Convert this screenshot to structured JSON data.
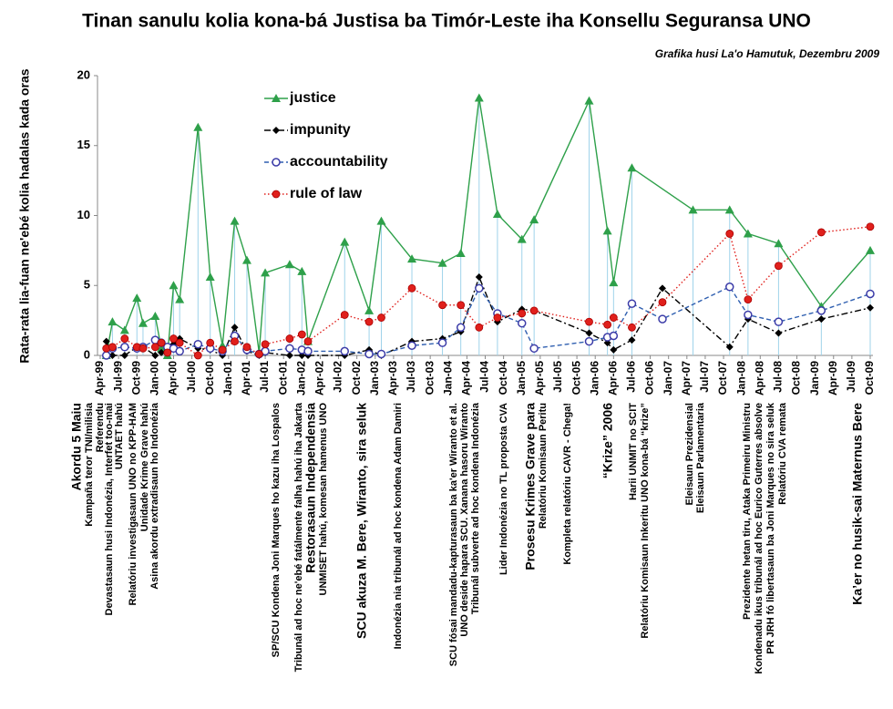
{
  "chart_data": {
    "type": "line",
    "title": "Tinan sanulu kolia kona-bá Justisa ba Timór-Leste iha Konsellu Seguransa UNO",
    "subtitle": "Grafika husi La'o Hamutuk, Dezembru 2009",
    "y_label": "Rata-rata lia-fuan ne'ebé kolia hadalas kada oras",
    "ylim": [
      0,
      20
    ],
    "yticks": [
      0,
      5,
      10,
      15,
      20
    ],
    "xlim": [
      "1999-04",
      "2009-10"
    ],
    "xticks": [
      {
        "value": "1999-04",
        "label": "Apr-99"
      },
      {
        "value": "1999-07",
        "label": "Jul-99"
      },
      {
        "value": "1999-10",
        "label": "Oct-99"
      },
      {
        "value": "2000-01",
        "label": "Jan-00"
      },
      {
        "value": "2000-04",
        "label": "Apr-00"
      },
      {
        "value": "2000-07",
        "label": "Jul-00"
      },
      {
        "value": "2000-10",
        "label": "Oct-00"
      },
      {
        "value": "2001-01",
        "label": "Jan-01"
      },
      {
        "value": "2001-04",
        "label": "Apr-01"
      },
      {
        "value": "2001-07",
        "label": "Jul-01"
      },
      {
        "value": "2001-10",
        "label": "Oct-01"
      },
      {
        "value": "2002-01",
        "label": "Jan-02"
      },
      {
        "value": "2002-04",
        "label": "Apr-02"
      },
      {
        "value": "2002-07",
        "label": "Jul-02"
      },
      {
        "value": "2002-10",
        "label": "Oct-02"
      },
      {
        "value": "2003-01",
        "label": "Jan-03"
      },
      {
        "value": "2003-04",
        "label": "Apr-03"
      },
      {
        "value": "2003-07",
        "label": "Jul-03"
      },
      {
        "value": "2003-10",
        "label": "Oct-03"
      },
      {
        "value": "2004-01",
        "label": "Jan-04"
      },
      {
        "value": "2004-04",
        "label": "Apr-04"
      },
      {
        "value": "2004-07",
        "label": "Jul-04"
      },
      {
        "value": "2004-10",
        "label": "Oct-04"
      },
      {
        "value": "2005-01",
        "label": "Jan-05"
      },
      {
        "value": "2005-04",
        "label": "Apr-05"
      },
      {
        "value": "2005-07",
        "label": "Jul-05"
      },
      {
        "value": "2005-10",
        "label": "Oct-05"
      },
      {
        "value": "2006-01",
        "label": "Jan-06"
      },
      {
        "value": "2006-04",
        "label": "Apr-06"
      },
      {
        "value": "2006-07",
        "label": "Jul-06"
      },
      {
        "value": "2006-10",
        "label": "Oct-06"
      },
      {
        "value": "2007-01",
        "label": "Jan-07"
      },
      {
        "value": "2007-04",
        "label": "Apr-07"
      },
      {
        "value": "2007-07",
        "label": "Jul-07"
      },
      {
        "value": "2007-10",
        "label": "Oct-07"
      },
      {
        "value": "2008-01",
        "label": "Jan-08"
      },
      {
        "value": "2008-04",
        "label": "Apr-08"
      },
      {
        "value": "2008-07",
        "label": "Jul-08"
      },
      {
        "value": "2008-10",
        "label": "Oct-08"
      },
      {
        "value": "2009-01",
        "label": "Jan-09"
      },
      {
        "value": "2009-04",
        "label": "Apr-09"
      },
      {
        "value": "2009-07",
        "label": "Jul-09"
      },
      {
        "value": "2009-10",
        "label": "Oct-09"
      }
    ],
    "series": [
      {
        "name": "justice",
        "color": "#2ea04a",
        "marker": "triangle",
        "dash": "solid",
        "drop_lines": true,
        "x": [
          "1999-05",
          "1999-06",
          "1999-08",
          "1999-10",
          "1999-11",
          "2000-01",
          "2000-02",
          "2000-03",
          "2000-04",
          "2000-05",
          "2000-08",
          "2000-10",
          "2000-12",
          "2001-02",
          "2001-04",
          "2001-06",
          "2001-07",
          "2001-11",
          "2002-01",
          "2002-02",
          "2002-08",
          "2002-12",
          "2003-02",
          "2003-07",
          "2003-12",
          "2004-03",
          "2004-06",
          "2004-09",
          "2005-01",
          "2005-03",
          "2005-12",
          "2006-03",
          "2006-04",
          "2006-07",
          "2007-05",
          "2007-11",
          "2008-02",
          "2008-07",
          "2009-02",
          "2009-10"
        ],
        "values": [
          0,
          2.4,
          1.8,
          4.1,
          2.3,
          2.8,
          0.5,
          0,
          5.0,
          4.0,
          16.3,
          5.6,
          0.7,
          9.6,
          6.8,
          0.2,
          5.9,
          6.5,
          6.0,
          1.0,
          8.1,
          3.2,
          9.6,
          6.9,
          6.6,
          7.3,
          18.4,
          10.1,
          8.3,
          9.7,
          18.2,
          8.9,
          5.2,
          13.4,
          10.4,
          10.4,
          8.7,
          8.0,
          3.5,
          7.5
        ]
      },
      {
        "name": "impunity",
        "color": "#000000",
        "marker": "diamond",
        "dash": "dashdot",
        "x": [
          "1999-05",
          "1999-06",
          "1999-08",
          "1999-10",
          "1999-11",
          "2000-01",
          "2000-02",
          "2000-03",
          "2000-04",
          "2000-05",
          "2000-08",
          "2000-10",
          "2000-12",
          "2001-02",
          "2001-04",
          "2001-06",
          "2001-07",
          "2001-11",
          "2002-01",
          "2002-02",
          "2002-08",
          "2002-12",
          "2003-02",
          "2003-07",
          "2003-12",
          "2004-03",
          "2004-06",
          "2004-09",
          "2005-01",
          "2005-03",
          "2005-12",
          "2006-03",
          "2006-04",
          "2006-07",
          "2006-12",
          "2007-11",
          "2008-02",
          "2008-07",
          "2009-02",
          "2009-10"
        ],
        "values": [
          1.0,
          0,
          0,
          0.6,
          0.6,
          0,
          0.2,
          0.4,
          0.8,
          1.2,
          0.5,
          0.4,
          0,
          2.0,
          0.3,
          0,
          0.2,
          0,
          0,
          0,
          0,
          0.4,
          0,
          1.0,
          1.2,
          1.7,
          5.6,
          2.4,
          3.3,
          3.2,
          1.6,
          0.9,
          0.4,
          1.1,
          4.8,
          0.6,
          2.6,
          1.6,
          2.6,
          3.4
        ]
      },
      {
        "name": "accountability",
        "color": "#2f5fb0",
        "marker": "open-circle",
        "dash": "dashed",
        "x": [
          "1999-05",
          "1999-06",
          "1999-08",
          "1999-10",
          "1999-11",
          "2000-01",
          "2000-02",
          "2000-03",
          "2000-04",
          "2000-05",
          "2000-08",
          "2000-10",
          "2000-12",
          "2001-02",
          "2001-04",
          "2001-06",
          "2001-07",
          "2001-11",
          "2002-01",
          "2002-02",
          "2002-08",
          "2002-12",
          "2003-02",
          "2003-07",
          "2003-12",
          "2004-03",
          "2004-06",
          "2004-09",
          "2005-01",
          "2005-03",
          "2005-12",
          "2006-03",
          "2006-04",
          "2006-07",
          "2006-12",
          "2007-11",
          "2008-02",
          "2008-07",
          "2009-02",
          "2009-10"
        ],
        "values": [
          0,
          0.5,
          0.6,
          0.5,
          0.6,
          1.1,
          0.9,
          0.6,
          0.5,
          0.3,
          0.8,
          0.5,
          0.3,
          1.4,
          0.4,
          0.1,
          0.3,
          0.5,
          0.4,
          0.3,
          0.3,
          0.1,
          0.1,
          0.7,
          0.9,
          2.0,
          4.8,
          3.0,
          2.3,
          0.5,
          1.0,
          1.3,
          1.4,
          3.7,
          2.6,
          4.9,
          2.9,
          2.4,
          3.2,
          4.4
        ]
      },
      {
        "name": "rule of law",
        "color": "#e0201c",
        "marker": "circle",
        "dash": "dotted",
        "x": [
          "1999-05",
          "1999-06",
          "1999-08",
          "1999-10",
          "1999-11",
          "2000-01",
          "2000-02",
          "2000-03",
          "2000-04",
          "2000-05",
          "2000-08",
          "2000-10",
          "2000-12",
          "2001-02",
          "2001-04",
          "2001-06",
          "2001-07",
          "2001-11",
          "2002-01",
          "2002-02",
          "2002-08",
          "2002-12",
          "2003-02",
          "2003-07",
          "2003-12",
          "2004-03",
          "2004-06",
          "2004-09",
          "2005-01",
          "2005-03",
          "2005-12",
          "2006-03",
          "2006-04",
          "2006-07",
          "2006-12",
          "2007-11",
          "2008-02",
          "2008-07",
          "2009-02",
          "2009-10"
        ],
        "values": [
          0.5,
          0.6,
          1.2,
          0.6,
          0.5,
          0.6,
          0.9,
          0.2,
          1.2,
          0.9,
          0,
          0.9,
          0.4,
          1.0,
          0.6,
          0.1,
          0.8,
          1.2,
          1.5,
          1.0,
          2.9,
          2.4,
          2.7,
          4.8,
          3.6,
          3.6,
          2.0,
          2.7,
          3.0,
          3.2,
          2.4,
          2.2,
          2.7,
          2.0,
          3.8,
          8.7,
          4.0,
          6.4,
          8.8,
          9.2
        ]
      }
    ],
    "annotations": [
      {
        "text": "Akordu 5 Maiu",
        "color": "#1a9a1a",
        "size": "big"
      },
      {
        "text": "Kampaña teror TNI/milisia",
        "color": "#d01f2a"
      },
      {
        "text": "Referendu",
        "color": "#1a9a1a"
      },
      {
        "text": "Devastasaun husi  Indonézia, Interfet too-mai",
        "color": "#d01f2a"
      },
      {
        "text": "UNTAET hahú",
        "color": "#1a9a1a"
      },
      {
        "text": "Relatóriu investigasaun UNO no KPP-HAM",
        "color": "#1a9a1a"
      },
      {
        "text": "Unidade Krime Grave hahú",
        "color": "#1a9a1a"
      },
      {
        "text": "Asina akordu extradisaun ho Indonézia",
        "color": "#1a9a1a"
      },
      {
        "text": "SP/SCU Kondena Joni Marques ho kazu iha Lospalos",
        "color": "#1a9a1a"
      },
      {
        "text": "Tribunál ad hoc ne'ebé fatálmente falha hahú iha Jakarta",
        "color": "#d01f2a"
      },
      {
        "text": "Restorasaun Independensia",
        "color": "#1a9a1a",
        "size": "big"
      },
      {
        "text": "UNMISET hahú, komesan hamenus UNO",
        "color": "#1a9a1a"
      },
      {
        "text": "SCU akuza M. Bere, Wiranto, sira seluk",
        "color": "#1a9a1a",
        "size": "big"
      },
      {
        "text": "Indonézia nia tribunál ad hoc kondena Adam Damiri",
        "color": "#1a9a1a"
      },
      {
        "text": "SCU fósai mandadu-kapturasaun ba ka'er Wiranto et al.",
        "color": "#1a9a1a"
      },
      {
        "text": "UNO deside hapara SCU.  Xanana hasoru Wiranto",
        "color": "#d01f2a"
      },
      {
        "text": "Tribunál subverte ad hoc kondena Indonézia",
        "color": "#d01f2a"
      },
      {
        "text": "Lider Indonézia no TL proposta CVA",
        "color": "#d01f2a"
      },
      {
        "text": "Prosesu Krimes Grave para",
        "color": "#d01f2a",
        "size": "big"
      },
      {
        "text": "Relatóriu Komisaun Peritu",
        "color": "#1a9a1a"
      },
      {
        "text": "Kompleta relatóriu CAVR - Chega!",
        "color": "#1a9a1a"
      },
      {
        "text": "“Krize” 2006",
        "color": "#d01f2a",
        "size": "big"
      },
      {
        "text": "Harii UNMIT no SCIT",
        "color": "#1a9a1a"
      },
      {
        "text": "Relatóriu Komisaun Inkeritu UNO kona-bá “krize”",
        "color": "#1a9a1a"
      },
      {
        "text": "Eleisaun Prezidensial",
        "color": "#1a9a1a"
      },
      {
        "text": "Eleisaun Parlamentaria",
        "color": "#1a9a1a"
      },
      {
        "text": "Prezidente hetan tiru, Ataka Primeiru Ministru",
        "color": "#d01f2a"
      },
      {
        "text": "Kondenadu ikus tribunál ad hoc Eurico Guterres absolve",
        "color": "#d01f2a"
      },
      {
        "text": "PR JRH fó libertasaun ba Joni Marques no sira seluk",
        "color": "#d01f2a"
      },
      {
        "text": "Relatóriu CVA remata",
        "color": "#d01f2a"
      },
      {
        "text": "Ka’er no husik-sai Maternus Bere",
        "color": "#d01f2a",
        "size": "big"
      }
    ]
  }
}
